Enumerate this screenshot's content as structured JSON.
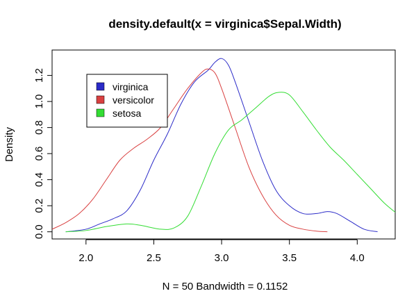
{
  "chart_data": {
    "type": "line",
    "title": "density.default(x = virginica$Sepal.Width)",
    "xlabel": "N = 50   Bandwidth = 0.1152",
    "ylabel": "Density",
    "xlim": [
      1.75,
      4.28
    ],
    "ylim": [
      -0.055,
      1.395
    ],
    "x_ticks": [
      "2.0",
      "2.5",
      "3.0",
      "3.5",
      "4.0"
    ],
    "x_tick_values": [
      2.0,
      2.5,
      3.0,
      3.5,
      4.0
    ],
    "y_ticks": [
      "0.0",
      "0.2",
      "0.4",
      "0.6",
      "0.8",
      "1.0",
      "1.2"
    ],
    "y_tick_values": [
      0.0,
      0.2,
      0.4,
      0.6,
      0.8,
      1.0,
      1.2
    ],
    "grid": false,
    "legend_position": "top-left",
    "series": [
      {
        "name": "virginica",
        "color": "#2b2bc8",
        "points": [
          [
            1.85,
            0.0
          ],
          [
            2.0,
            0.02
          ],
          [
            2.1,
            0.06
          ],
          [
            2.2,
            0.1
          ],
          [
            2.3,
            0.16
          ],
          [
            2.4,
            0.32
          ],
          [
            2.5,
            0.55
          ],
          [
            2.6,
            0.75
          ],
          [
            2.7,
            0.98
          ],
          [
            2.8,
            1.15
          ],
          [
            2.9,
            1.24
          ],
          [
            2.95,
            1.3
          ],
          [
            3.0,
            1.33
          ],
          [
            3.05,
            1.28
          ],
          [
            3.1,
            1.15
          ],
          [
            3.2,
            0.85
          ],
          [
            3.3,
            0.55
          ],
          [
            3.4,
            0.32
          ],
          [
            3.5,
            0.2
          ],
          [
            3.6,
            0.14
          ],
          [
            3.7,
            0.14
          ],
          [
            3.78,
            0.155
          ],
          [
            3.85,
            0.14
          ],
          [
            3.95,
            0.08
          ],
          [
            4.05,
            0.02
          ],
          [
            4.15,
            0.0
          ]
        ]
      },
      {
        "name": "versicolor",
        "color": "#d94040",
        "points": [
          [
            1.75,
            0.02
          ],
          [
            1.85,
            0.07
          ],
          [
            1.95,
            0.14
          ],
          [
            2.05,
            0.25
          ],
          [
            2.15,
            0.4
          ],
          [
            2.25,
            0.55
          ],
          [
            2.35,
            0.64
          ],
          [
            2.45,
            0.71
          ],
          [
            2.55,
            0.8
          ],
          [
            2.65,
            0.95
          ],
          [
            2.75,
            1.1
          ],
          [
            2.85,
            1.22
          ],
          [
            2.9,
            1.25
          ],
          [
            2.95,
            1.22
          ],
          [
            3.0,
            1.1
          ],
          [
            3.1,
            0.8
          ],
          [
            3.2,
            0.5
          ],
          [
            3.3,
            0.28
          ],
          [
            3.4,
            0.13
          ],
          [
            3.5,
            0.05
          ],
          [
            3.6,
            0.02
          ],
          [
            3.7,
            0.005
          ],
          [
            3.78,
            0.0
          ]
        ]
      },
      {
        "name": "setosa",
        "color": "#33dd33",
        "points": [
          [
            1.85,
            0.0
          ],
          [
            2.0,
            0.01
          ],
          [
            2.15,
            0.04
          ],
          [
            2.3,
            0.06
          ],
          [
            2.4,
            0.05
          ],
          [
            2.55,
            0.02
          ],
          [
            2.65,
            0.03
          ],
          [
            2.75,
            0.12
          ],
          [
            2.85,
            0.35
          ],
          [
            2.95,
            0.6
          ],
          [
            3.05,
            0.78
          ],
          [
            3.15,
            0.86
          ],
          [
            3.25,
            0.95
          ],
          [
            3.35,
            1.04
          ],
          [
            3.42,
            1.07
          ],
          [
            3.5,
            1.05
          ],
          [
            3.6,
            0.92
          ],
          [
            3.7,
            0.78
          ],
          [
            3.8,
            0.65
          ],
          [
            3.9,
            0.55
          ],
          [
            4.0,
            0.44
          ],
          [
            4.1,
            0.33
          ],
          [
            4.2,
            0.22
          ],
          [
            4.28,
            0.15
          ]
        ]
      }
    ]
  }
}
